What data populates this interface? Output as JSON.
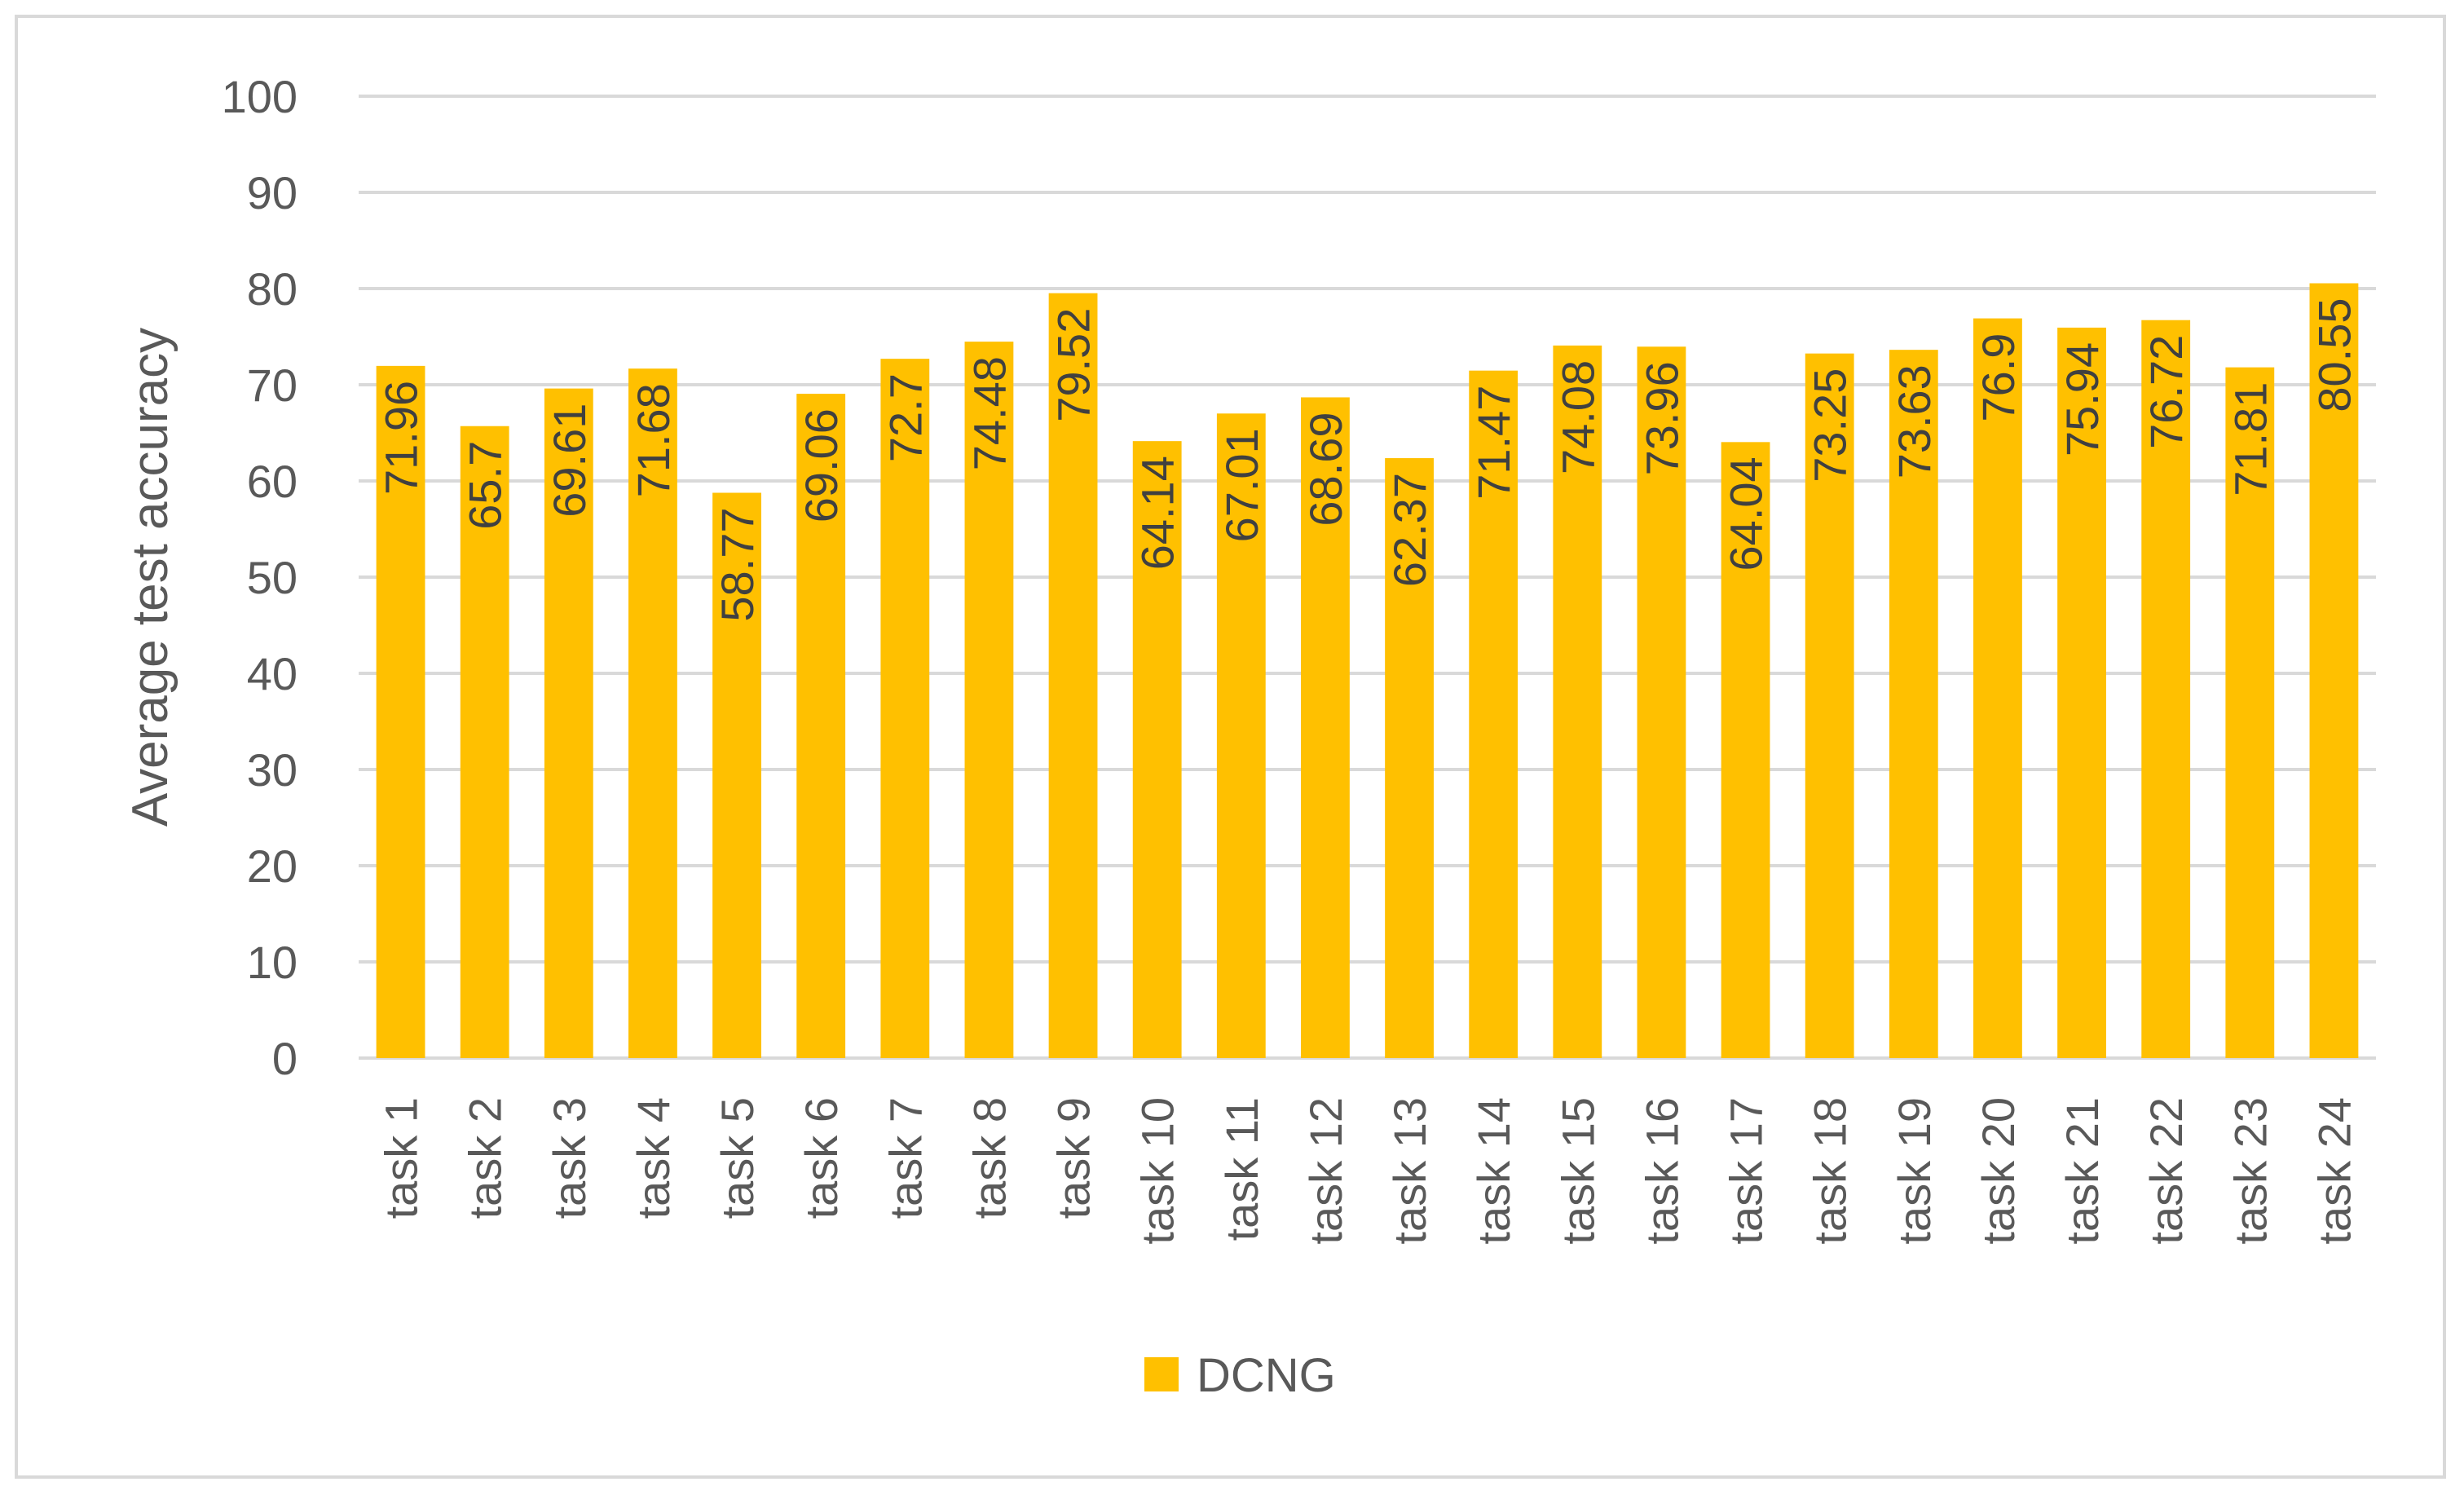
{
  "chart_data": {
    "type": "bar",
    "categories": [
      "task 1",
      "task 2",
      "task 3",
      "task 4",
      "task 5",
      "task 6",
      "task 7",
      "task 8",
      "task 9",
      "task 10",
      "task 11",
      "task 12",
      "task 13",
      "task 14",
      "task 15",
      "task 16",
      "task 17",
      "task 18",
      "task 19",
      "task 20",
      "task 21",
      "task 22",
      "task 23",
      "task 24"
    ],
    "series": [
      {
        "name": "DCNG",
        "color": "#ffc000",
        "values": [
          71.96,
          65.7,
          69.61,
          71.68,
          58.77,
          69.06,
          72.7,
          74.48,
          79.52,
          64.14,
          67.01,
          68.69,
          62.37,
          71.47,
          74.08,
          73.96,
          64.04,
          73.25,
          73.63,
          76.9,
          75.94,
          76.72,
          71.81,
          80.55
        ],
        "labels": [
          "71.96",
          "65.7",
          "69.61",
          "71.68",
          "58.77",
          "69.06",
          "72.7",
          "74.48",
          "79.52",
          "64.14",
          "67.01",
          "68.69",
          "62.37",
          "71.47",
          "74.08",
          "73.96",
          "64.04",
          "73.25",
          "73.63",
          "76.9",
          "75.94",
          "76.72",
          "71.81",
          "80.55"
        ]
      }
    ],
    "ylabel": "Average test accuracy",
    "xlabel": "",
    "ylim": [
      0,
      100
    ],
    "yticks": [
      "0",
      "10",
      "20",
      "30",
      "40",
      "50",
      "60",
      "70",
      "80",
      "90",
      "100"
    ],
    "grid": true,
    "gridline_color": "#d9d9d9",
    "legend": "bottom",
    "data_labels": "inside-end-rotated"
  }
}
